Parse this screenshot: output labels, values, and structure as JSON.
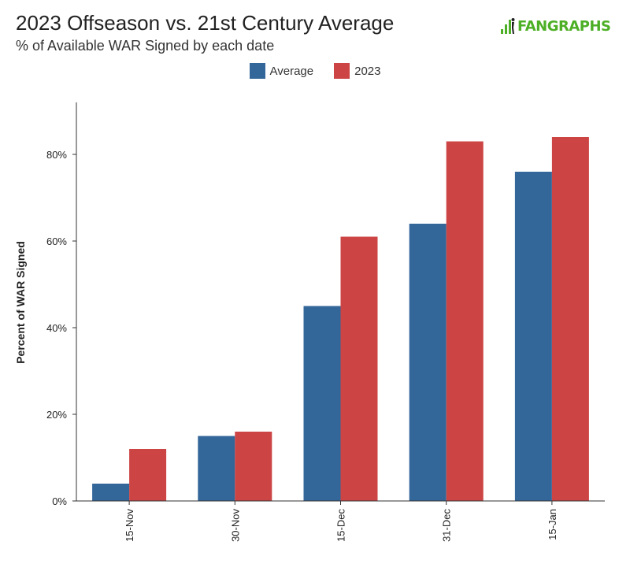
{
  "header": {
    "title": "2023 Offseason vs. 21st Century Average",
    "subtitle": "% of Available WAR Signed by each date"
  },
  "logo": {
    "text": "FANGRAPHS",
    "icon": "fangraphs-logo-icon",
    "color": "#4caf25"
  },
  "chart_data": {
    "type": "bar",
    "title": "2023 Offseason vs. 21st Century Average",
    "subtitle": "% of Available WAR Signed by each date",
    "xlabel": "",
    "ylabel": "Percent of WAR Signed",
    "categories": [
      "15-Nov",
      "30-Nov",
      "15-Dec",
      "31-Dec",
      "15-Jan"
    ],
    "series": [
      {
        "name": "Average",
        "color": "#336699",
        "values": [
          4,
          15,
          45,
          64,
          76
        ]
      },
      {
        "name": "2023",
        "color": "#cc4444",
        "values": [
          12,
          16,
          61,
          83,
          84
        ]
      }
    ],
    "ylim": [
      0,
      92
    ],
    "yticks": [
      0,
      20,
      40,
      60,
      80
    ],
    "ytick_labels": [
      "0%",
      "20%",
      "40%",
      "60%",
      "80%"
    ],
    "grid": false,
    "legend_position": "top-center"
  }
}
